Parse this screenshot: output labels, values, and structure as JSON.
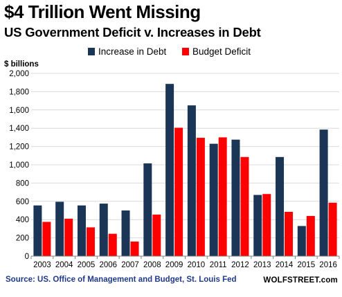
{
  "header": {
    "title": "$4 Trillion Went Missing",
    "subtitle": "US Government Deficit v. Increases in Debt"
  },
  "footer": {
    "source": "Source: US. Office of Management and Budget, St. Louis Fed",
    "brand": "WOLFSTREET.com"
  },
  "colors": {
    "debt": "#1b3557",
    "deficit": "#ff0000",
    "grid": "#d9d9d9",
    "axis": "#808080"
  },
  "chart_data": {
    "type": "bar",
    "title": "$4 Trillion Went Missing",
    "subtitle": "US Government Deficit v. Increases in Debt",
    "ylabel": "$ billions",
    "xlabel": "",
    "ylim": [
      0,
      2000
    ],
    "yticks": [
      "0",
      "200",
      "400",
      "600",
      "800",
      "1,000",
      "1,200",
      "1,400",
      "1,600",
      "1,800",
      "2,000"
    ],
    "grid": true,
    "legend_position": "top",
    "categories": [
      "2003",
      "2004",
      "2005",
      "2006",
      "2007",
      "2008",
      "2009",
      "2010",
      "2011",
      "2012",
      "2013",
      "2014",
      "2015",
      "2016"
    ],
    "series": [
      {
        "name": "Increase in Debt",
        "color": "#1b3557",
        "values": [
          555,
          595,
          555,
          575,
          500,
          1015,
          1885,
          1650,
          1230,
          1275,
          670,
          1085,
          330,
          1385
        ]
      },
      {
        "name": "Budget Deficit",
        "color": "#ff0000",
        "values": [
          375,
          410,
          315,
          245,
          160,
          455,
          1405,
          1295,
          1300,
          1085,
          680,
          485,
          440,
          585
        ]
      }
    ]
  }
}
